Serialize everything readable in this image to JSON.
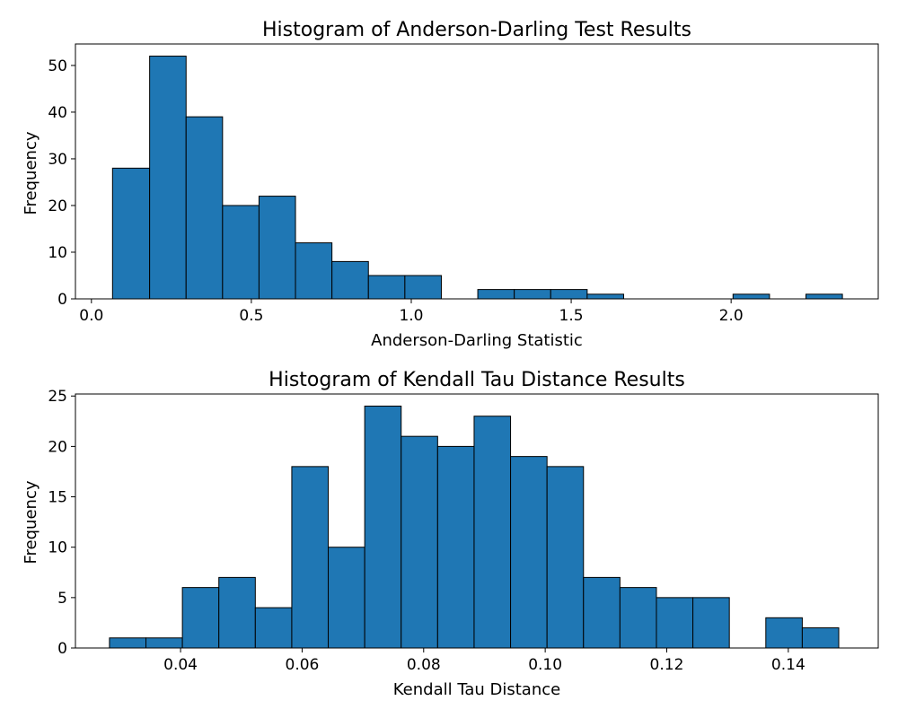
{
  "chart_data": [
    {
      "type": "bar",
      "title": "Histogram of Anderson-Darling Test Results",
      "xlabel": "Anderson-Darling Statistic",
      "ylabel": "Frequency",
      "xlim": [
        -0.05,
        2.46
      ],
      "ylim": [
        0,
        54.6
      ],
      "xticks": [
        0.0,
        0.5,
        1.0,
        1.5,
        2.0
      ],
      "xtick_labels": [
        "0.0",
        "0.5",
        "1.0",
        "1.5",
        "2.0"
      ],
      "yticks": [
        0,
        10,
        20,
        30,
        40,
        50
      ],
      "ytick_labels": [
        "0",
        "10",
        "20",
        "30",
        "40",
        "50"
      ],
      "bin_edges": [
        0.066,
        0.182,
        0.296,
        0.41,
        0.524,
        0.638,
        0.752,
        0.866,
        0.98,
        1.094,
        1.208,
        1.322,
        1.436,
        1.55,
        1.664,
        1.778,
        1.892,
        2.006,
        2.12,
        2.234,
        2.348
      ],
      "values": [
        28,
        52,
        39,
        20,
        22,
        12,
        8,
        5,
        5,
        0,
        2,
        2,
        2,
        1,
        0,
        0,
        0,
        1,
        0,
        1
      ],
      "color": "#1f77b4",
      "edgecolor": "#000000",
      "grid": false
    },
    {
      "type": "bar",
      "title": "Histogram of Kendall Tau Distance Results",
      "xlabel": "Kendall Tau Distance",
      "ylabel": "Frequency",
      "xlim": [
        0.0227,
        0.1548
      ],
      "ylim": [
        0,
        25.2
      ],
      "xticks": [
        0.04,
        0.06,
        0.08,
        0.1,
        0.12,
        0.14
      ],
      "xtick_labels": [
        "0.04",
        "0.06",
        "0.08",
        "0.10",
        "0.12",
        "0.14"
      ],
      "yticks": [
        0,
        5,
        10,
        15,
        20,
        25
      ],
      "ytick_labels": [
        "0",
        "5",
        "10",
        "15",
        "20",
        "25"
      ],
      "bin_edges": [
        0.0283,
        0.0343,
        0.0403,
        0.0463,
        0.0523,
        0.0583,
        0.0643,
        0.0703,
        0.0763,
        0.0823,
        0.0883,
        0.0943,
        0.1003,
        0.1063,
        0.1123,
        0.1183,
        0.1243,
        0.1303,
        0.1363,
        0.1423,
        0.1483
      ],
      "values": [
        1,
        1,
        6,
        7,
        4,
        18,
        10,
        24,
        21,
        20,
        23,
        19,
        18,
        7,
        6,
        5,
        5,
        0,
        3,
        2
      ],
      "color": "#1f77b4",
      "edgecolor": "#000000",
      "grid": false
    }
  ]
}
